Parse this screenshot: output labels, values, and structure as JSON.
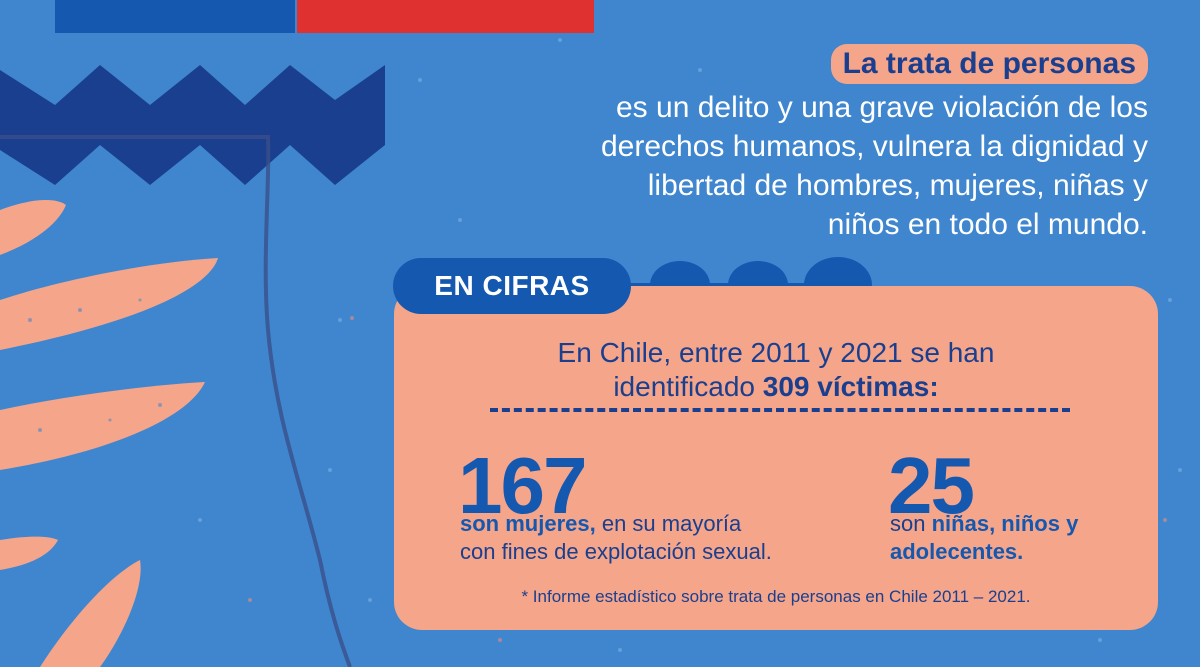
{
  "colors": {
    "background": "#3f86cf",
    "navy": "#1558b0",
    "dark_navy": "#1a3f8f",
    "salmon": "#f4a58a",
    "flag_red": "#e03131",
    "white": "#ffffff"
  },
  "headline": {
    "highlight": "La trata de personas",
    "lines": [
      "es un delito y una grave violación de los",
      "derechos humanos, vulnera la dignidad y",
      "libertad de hombres, mujeres, niñas y",
      "niños en todo el mundo."
    ]
  },
  "cifras": {
    "tab_label": "EN CIFRAS",
    "intro_line1": "En Chile, entre 2011 y 2021 se han",
    "intro_line2_prefix": "identificado",
    "intro_line2_bold": "309 víctimas:",
    "stats": [
      {
        "number": "167",
        "bold": "son mujeres,",
        "text_after_bold": "en su mayoría",
        "line2": "con fines de explotación sexual."
      },
      {
        "number": "25",
        "prefix": "son",
        "bold": "niñas, niños y",
        "line2": "adolecentes."
      }
    ],
    "source_note": "* Informe estadístico sobre trata de personas en Chile 2011 – 2021."
  }
}
